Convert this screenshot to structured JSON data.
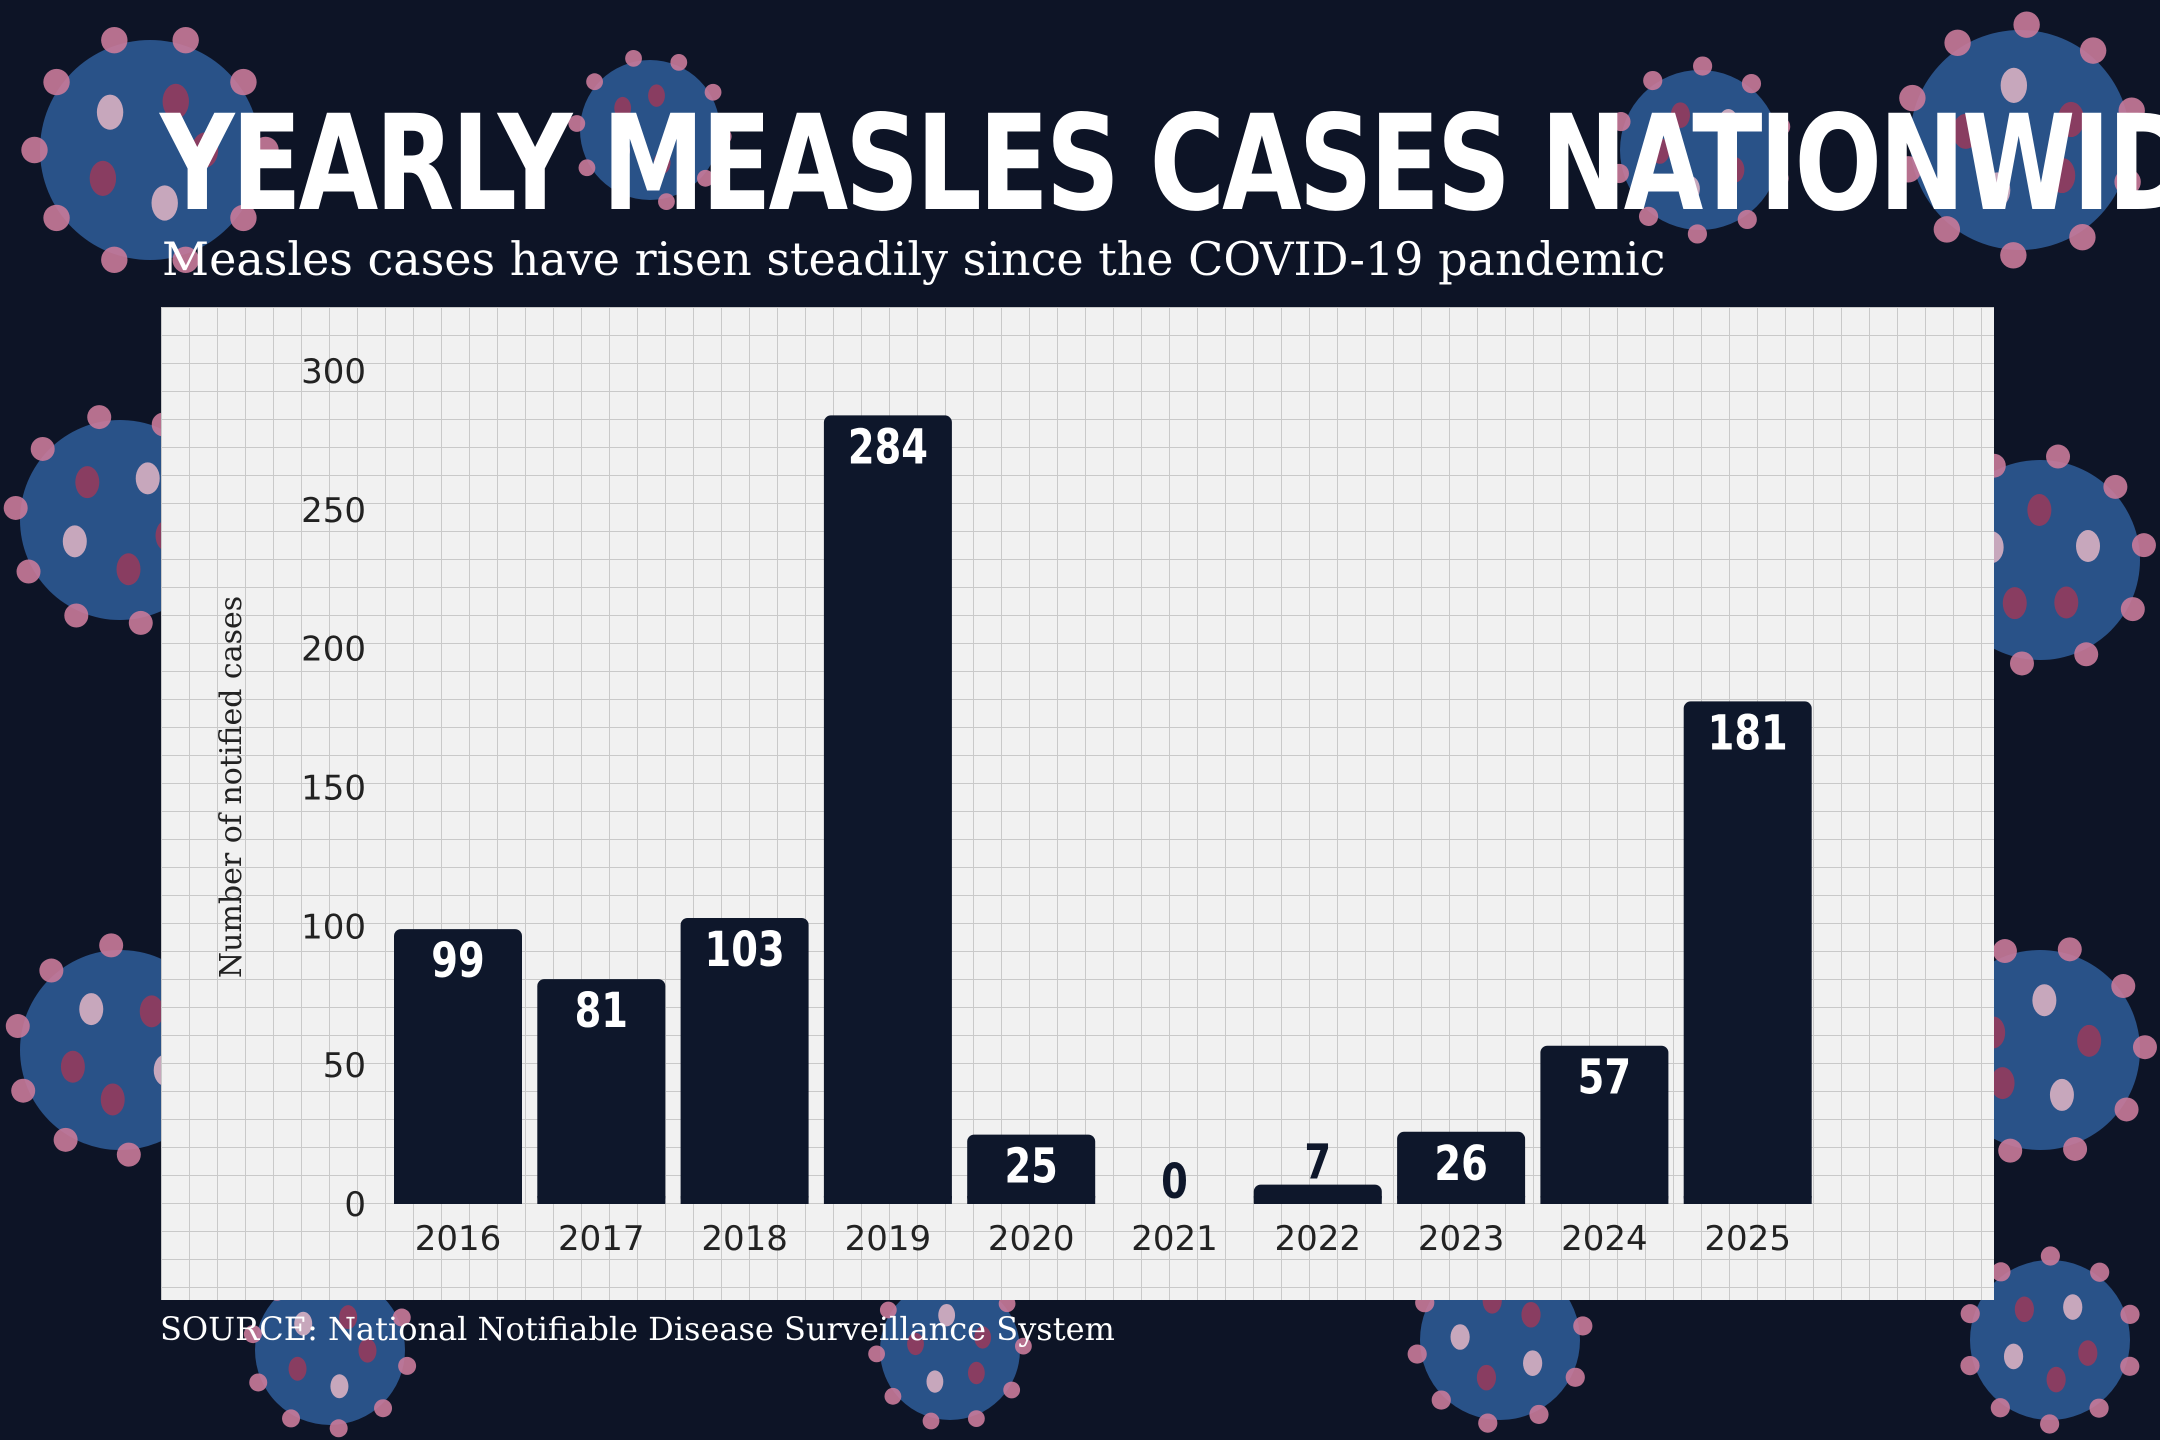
{
  "header": {
    "title": "YEARLY MEASLES CASES NATIONWIDE",
    "subtitle": "Measles cases have risen steadily since the COVID-19 pandemic"
  },
  "footer": {
    "source": "SOURCE: National Notifiable Disease Surveillance System"
  },
  "colors": {
    "background": "#0d1426",
    "bar": "#0e172b",
    "panel": "#f1f1f1",
    "virus_blue": "#2f5d9a",
    "virus_pink": "#c97a9a"
  },
  "chart_data": {
    "type": "bar",
    "title": "YEARLY MEASLES CASES NATIONWIDE",
    "subtitle": "Measles cases have risen steadily since the COVID-19 pandemic",
    "xlabel": "",
    "ylabel": "Number of notified cases",
    "ylim": [
      0,
      300
    ],
    "yticks": [
      0,
      50,
      100,
      150,
      200,
      250,
      300
    ],
    "categories": [
      "2016",
      "2017",
      "2018",
      "2019",
      "2020",
      "2021",
      "2022",
      "2023",
      "2024",
      "2025"
    ],
    "values": [
      99,
      81,
      103,
      284,
      25,
      0,
      7,
      26,
      57,
      181
    ],
    "grid": true,
    "legend": "none",
    "data_labels": true
  }
}
